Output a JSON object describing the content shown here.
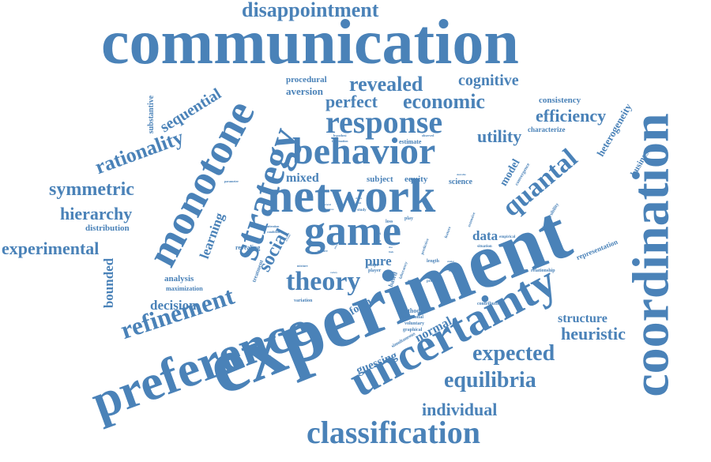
{
  "color": "#4a82b8",
  "words": [
    {
      "text": "communication",
      "size": 1.0
    },
    {
      "text": "experiment",
      "size": 0.98
    },
    {
      "text": "coordination",
      "size": 0.9
    },
    {
      "text": "preference",
      "size": 0.82
    },
    {
      "text": "uncertainty",
      "size": 0.8
    },
    {
      "text": "monotone",
      "size": 0.72
    },
    {
      "text": "network",
      "size": 0.7
    },
    {
      "text": "game",
      "size": 0.68
    },
    {
      "text": "strategy",
      "size": 0.66
    },
    {
      "text": "behavior",
      "size": 0.6
    },
    {
      "text": "classification",
      "size": 0.55
    },
    {
      "text": "response",
      "size": 0.5
    },
    {
      "text": "quantal",
      "size": 0.46
    },
    {
      "text": "theory",
      "size": 0.44
    },
    {
      "text": "refinement",
      "size": 0.42
    },
    {
      "text": "disappointment",
      "size": 0.36
    },
    {
      "text": "equilibria",
      "size": 0.4
    },
    {
      "text": "expected",
      "size": 0.38
    },
    {
      "text": "revealed",
      "size": 0.36
    },
    {
      "text": "economic",
      "size": 0.34
    },
    {
      "text": "perfect",
      "size": 0.3
    },
    {
      "text": "cognitive",
      "size": 0.28
    },
    {
      "text": "efficiency",
      "size": 0.3
    },
    {
      "text": "rationality",
      "size": 0.34
    },
    {
      "text": "symmetric",
      "size": 0.32
    },
    {
      "text": "hierarchy",
      "size": 0.3
    },
    {
      "text": "experimental",
      "size": 0.3
    },
    {
      "text": "individual",
      "size": 0.3
    },
    {
      "text": "heuristic",
      "size": 0.3
    },
    {
      "text": "social",
      "size": 0.32
    },
    {
      "text": "utility",
      "size": 0.3
    },
    {
      "text": "sequential",
      "size": 0.26
    },
    {
      "text": "bounded",
      "size": 0.22
    },
    {
      "text": "decision",
      "size": 0.22
    },
    {
      "text": "learning",
      "size": 0.22
    },
    {
      "text": "mixed",
      "size": 0.2
    },
    {
      "text": "structure",
      "size": 0.22
    },
    {
      "text": "pure",
      "size": 0.22
    },
    {
      "text": "data",
      "size": 0.22
    },
    {
      "text": "model",
      "size": 0.18
    },
    {
      "text": "normal",
      "size": 0.2
    },
    {
      "text": "guessing",
      "size": 0.18
    },
    {
      "text": "form",
      "size": 0.18
    },
    {
      "text": "heterogeneity",
      "size": 0.16
    },
    {
      "text": "business",
      "size": 0.14
    },
    {
      "text": "procedural",
      "size": 0.14
    },
    {
      "text": "aversion",
      "size": 0.16
    },
    {
      "text": "consistency",
      "size": 0.14
    },
    {
      "text": "characterize",
      "size": 0.12
    },
    {
      "text": "substantive",
      "size": 0.12
    },
    {
      "text": "distribution",
      "size": 0.13
    },
    {
      "text": "analysis",
      "size": 0.14
    },
    {
      "text": "maximization",
      "size": 0.1
    },
    {
      "text": "subject",
      "size": 0.14
    },
    {
      "text": "equity",
      "size": 0.14
    },
    {
      "text": "science",
      "size": 0.13
    },
    {
      "text": "estimate",
      "size": 0.1
    },
    {
      "text": "representation",
      "size": 0.11
    },
    {
      "text": "revealing",
      "size": 0.1
    },
    {
      "text": "treatment",
      "size": 0.09
    },
    {
      "text": "method",
      "size": 0.1
    },
    {
      "text": "substantial",
      "size": 0.08
    },
    {
      "text": "voluntary",
      "size": 0.08
    },
    {
      "text": "graphical",
      "size": 0.08
    },
    {
      "text": "simultaneous",
      "size": 0.08
    },
    {
      "text": "contribution",
      "size": 0.08
    },
    {
      "text": "variation",
      "size": 0.08
    },
    {
      "text": "relationship",
      "size": 0.08
    },
    {
      "text": "irreversibility",
      "size": 0.08
    },
    {
      "text": "convergence",
      "size": 0.08
    },
    {
      "text": "length",
      "size": 0.08
    },
    {
      "text": "empirical",
      "size": 0.07
    },
    {
      "text": "situation",
      "size": 0.07
    },
    {
      "text": "extensive",
      "size": 0.07
    },
    {
      "text": "feature",
      "size": 0.07
    },
    {
      "text": "prediction",
      "size": 0.07
    },
    {
      "text": "smpe",
      "size": 0.08
    },
    {
      "text": "player",
      "size": 0.08
    },
    {
      "text": "based",
      "size": 0.1
    },
    {
      "text": "laboratory",
      "size": 0.07
    },
    {
      "text": "predictive",
      "size": 0.06
    },
    {
      "text": "play",
      "size": 0.08
    },
    {
      "text": "loss",
      "size": 0.08
    },
    {
      "text": "study",
      "size": 0.07
    },
    {
      "text": "risk",
      "size": 0.07
    },
    {
      "text": "mixture",
      "size": 0.06
    },
    {
      "text": "explore",
      "size": 0.06
    },
    {
      "text": "condition",
      "size": 0.06
    },
    {
      "text": "attention",
      "size": 0.06
    },
    {
      "text": "parameter",
      "size": 0.06
    },
    {
      "text": "hypothesi",
      "size": 0.06
    },
    {
      "text": "information",
      "size": 0.06
    },
    {
      "text": "observed",
      "size": 0.06
    },
    {
      "text": "desirable",
      "size": 0.05
    },
    {
      "text": "choice",
      "size": 0.05
    },
    {
      "text": "result",
      "size": 0.05
    },
    {
      "text": "improve",
      "size": 0.05
    },
    {
      "text": "several",
      "size": 0.05
    },
    {
      "text": "outcome",
      "size": 0.05
    },
    {
      "text": "capture",
      "size": 0.05
    },
    {
      "text": "stronger",
      "size": 0.05
    },
    {
      "text": "similar",
      "size": 0.05
    },
    {
      "text": "variety",
      "size": 0.05
    },
    {
      "text": "level",
      "size": 0.05
    },
    {
      "text": "account",
      "size": 0.05
    },
    {
      "text": "restrict",
      "size": 0.05
    },
    {
      "text": "purity",
      "size": 0.05
    },
    {
      "text": "also",
      "size": 0.05
    },
    {
      "text": "finds",
      "size": 0.05
    }
  ]
}
